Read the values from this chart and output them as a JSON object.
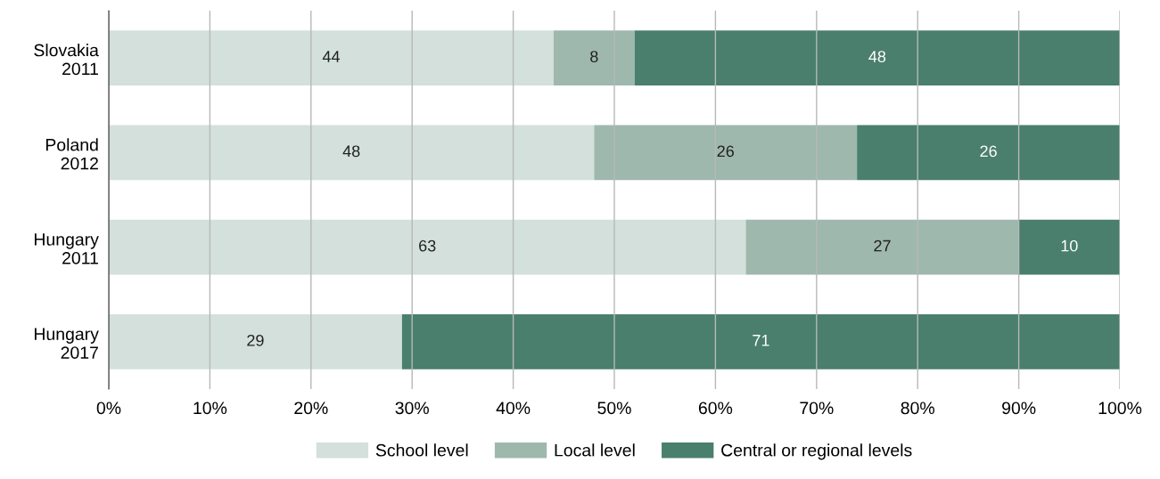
{
  "chart_data": {
    "type": "bar",
    "orientation": "horizontal",
    "stacked": true,
    "categories": [
      "Slovakia\n2011",
      "Poland\n2012",
      "Hungary\n2011",
      "Hungary\n2017"
    ],
    "series": [
      {
        "name": "School level",
        "color": "#d3e0db",
        "values": [
          44,
          48,
          63,
          29
        ],
        "value_labels": [
          "44",
          "48",
          "63",
          "29"
        ]
      },
      {
        "name": "Local level",
        "color": "#9fb8ae",
        "values": [
          8,
          26,
          27,
          0
        ],
        "value_labels": [
          "8",
          "26",
          "27",
          null
        ]
      },
      {
        "name": "Central or regional levels",
        "color": "#4a7f6d",
        "values": [
          48,
          26,
          10,
          71
        ],
        "value_labels": [
          "48",
          "26",
          "10",
          "71"
        ]
      }
    ],
    "xlim": [
      0,
      100
    ],
    "xticks": [
      {
        "value": 0,
        "label": "0%"
      },
      {
        "value": 10,
        "label": "10%"
      },
      {
        "value": 20,
        "label": "20%"
      },
      {
        "value": 30,
        "label": "30%"
      },
      {
        "value": 40,
        "label": "40%"
      },
      {
        "value": 50,
        "label": "50%"
      },
      {
        "value": 60,
        "label": "60%"
      },
      {
        "value": 70,
        "label": "70%"
      },
      {
        "value": 80,
        "label": "80%"
      },
      {
        "value": 90,
        "label": "90%"
      },
      {
        "value": 100,
        "label": "100%"
      }
    ],
    "grid": "x",
    "legend": "bottom"
  }
}
